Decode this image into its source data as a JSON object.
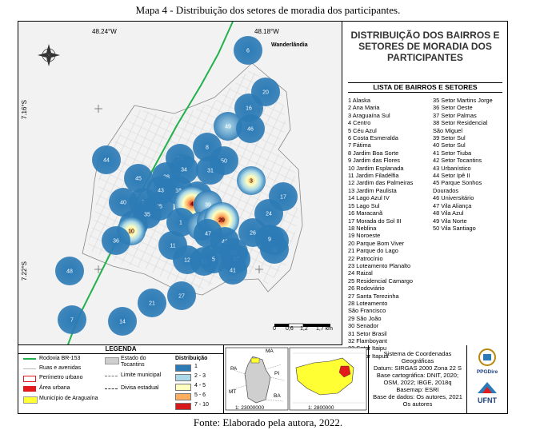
{
  "caption_top": "Mapa 4 - Distribuição dos setores de moradia dos participantes.",
  "caption_bottom": "Fonte: Elaborado pela autora, 2022.",
  "map": {
    "coords": {
      "lon_left": "48.24°W",
      "lon_right": "48.18°W",
      "lat_top": "7.16°S",
      "lat_bottom": "7.22°S"
    },
    "place_label": "Wanderlândia",
    "scalebar": {
      "labels": [
        "0",
        "0,6",
        "1,2",
        "1,7 km"
      ]
    },
    "colors": {
      "class_1": "#2c7bb6",
      "class_2_3": "#abd9e9",
      "class_4_5": "#ffffbf",
      "class_5_6": "#fdae61",
      "class_7_10": "#d7191c",
      "highway": "#22b14c",
      "perimeter": "#e31a1c"
    },
    "markers": [
      {
        "n": "6",
        "class": 1
      },
      {
        "n": "20",
        "class": 1
      },
      {
        "n": "16",
        "class": 1
      },
      {
        "n": "49",
        "class": 2
      },
      {
        "n": "46",
        "class": 1
      },
      {
        "n": "44",
        "class": 1
      },
      {
        "n": "8",
        "class": 1
      },
      {
        "n": "23",
        "class": 1
      },
      {
        "n": "50",
        "class": 1
      },
      {
        "n": "34",
        "class": 1
      },
      {
        "n": "31",
        "class": 1
      },
      {
        "n": "45",
        "class": 1
      },
      {
        "n": "28",
        "class": 1
      },
      {
        "n": "3",
        "class": 4
      },
      {
        "n": "43",
        "class": 1
      },
      {
        "n": "18",
        "class": 1
      },
      {
        "n": "19",
        "class": 1
      },
      {
        "n": "17",
        "class": 1
      },
      {
        "n": "40",
        "class": 1
      },
      {
        "n": "2",
        "class": 1
      },
      {
        "n": "25",
        "class": 1
      },
      {
        "n": "4",
        "class": 7
      },
      {
        "n": "39",
        "class": 2
      },
      {
        "n": "24",
        "class": 1
      },
      {
        "n": "38",
        "class": 1
      },
      {
        "n": "35",
        "class": 1
      },
      {
        "n": "10",
        "class": 4
      },
      {
        "n": "1",
        "class": 1
      },
      {
        "n": "30",
        "class": 2
      },
      {
        "n": "22",
        "class": 2
      },
      {
        "n": "29",
        "class": 7
      },
      {
        "n": "26",
        "class": 1
      },
      {
        "n": "47",
        "class": 1
      },
      {
        "n": "36",
        "class": 1
      },
      {
        "n": "15",
        "class": 1
      },
      {
        "n": "32",
        "class": 1
      },
      {
        "n": "42",
        "class": 1
      },
      {
        "n": "9",
        "class": 1
      },
      {
        "n": "11",
        "class": 1
      },
      {
        "n": "12",
        "class": 1
      },
      {
        "n": "13",
        "class": 1
      },
      {
        "n": "5",
        "class": 1
      },
      {
        "n": "33",
        "class": 1
      },
      {
        "n": "37",
        "class": 1
      },
      {
        "n": "41",
        "class": 1
      },
      {
        "n": "48",
        "class": 1
      },
      {
        "n": "21",
        "class": 1
      },
      {
        "n": "27",
        "class": 1
      },
      {
        "n": "7",
        "class": 1
      },
      {
        "n": "14",
        "class": 1
      }
    ]
  },
  "panel": {
    "title": "DISTRIBUIÇÃO DOS BAIRROS E SETORES DE MORADIA DOS PARTICIPANTES",
    "list_header": "LISTA DE BAIRROS E SETORES",
    "list_col1": [
      "1 Alaska",
      "2 Ana Maria",
      "3 Araguaína Sul",
      "4 Centro",
      "5 Céu Azul",
      "6 Costa Esmeralda",
      "7 Fátima",
      "8 Jardim Boa Sorte",
      "9 Jardim das Flores",
      "10 Jardim Esplanada",
      "11 Jardim Filadélfia",
      "12 Jardim das Palmeiras",
      "13 Jardim Paulista",
      "14 Lago Azul IV",
      "15 Lago Sul",
      "16 Maracanã",
      "17 Morada do Sol III",
      "18 Neblina",
      "19 Noroeste",
      "20 Parque Bom Viver",
      "21 Parque do Lago",
      "22 Patrocínio",
      "23 Loteamento Planalto",
      "24 Raizal",
      "25 Residencial Camargo",
      "26 Rodoviário",
      "27 Santa Terezinha",
      "28 Loteamento",
      "São Francisco",
      "29 São João",
      "30 Senador",
      "31 Setor Brasil",
      "32 Flamboyant",
      "33 Setor Itaipu",
      "34 Setor Itapuã"
    ],
    "list_col2": [
      "35 Setor Martins Jorge",
      "36 Setor Oeste",
      "37 Setor Palmas",
      "38 Setor Residencial",
      "São Miguel",
      "39 Setor Sul",
      "40 Setor Sul",
      "41 Setor Tiuba",
      "42 Setor Tocantins",
      "43 Urbanístico",
      "44 Setor Ipê II",
      "45 Parque Sonhos",
      "Dourados",
      "46 Universitário",
      "47 Vila Aliança",
      "48 Vila Azul",
      "49 Vila Norte",
      "50 Vila Santiago"
    ]
  },
  "legend": {
    "title": "LEGENDA",
    "highway": "Rodovia BR-153",
    "streets": "Ruas e avenidas",
    "perimeter": "Perímetro urbano",
    "urban_area": "Área urbana",
    "municipality": "Município de Araguaína",
    "state": "Estado do Tocantins",
    "municipal_limit": "Limite municipal",
    "state_border": "Divisa estadual",
    "dist_title": "Distribuição",
    "dist_classes": [
      "1",
      "2 - 3",
      "4 - 5",
      "5 - 6",
      "7 - 10"
    ],
    "colors": {
      "area_urbana": "#e31a1c",
      "municipio": "#ffff33",
      "estado": "#cfcfcf"
    }
  },
  "minimap": {
    "labels": [
      "MA",
      "PA",
      "PI",
      "MT",
      "BA"
    ],
    "scale1": "1: 23000000",
    "scale2": "1: 2800000"
  },
  "info": [
    "Sistema de Coordenadas",
    "Geográficas",
    "Datum: SIRGAS 2000 Zona 22 S",
    "Base cartográfica: DNIT, 2020;",
    "OSM, 2022; IBGE, 2018q",
    "Basemap: ESRI",
    "Base de dados: Os autores, 2021",
    "Os autores"
  ],
  "logos": [
    "PPGDire",
    "UFNT"
  ]
}
